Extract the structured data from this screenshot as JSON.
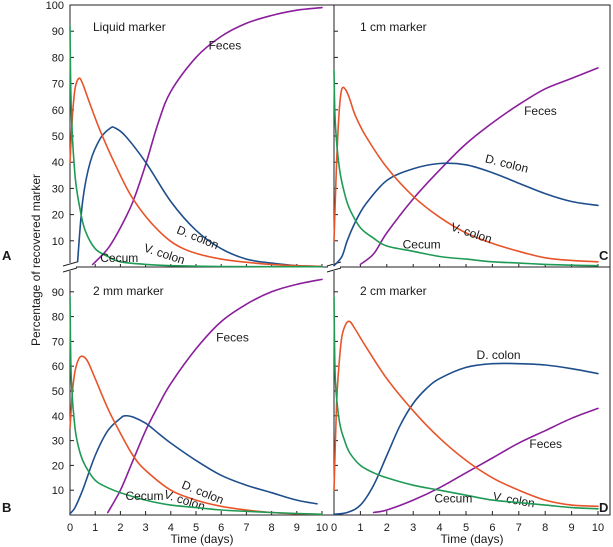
{
  "figure": {
    "ylabel": "Percentage of recovered marker",
    "xlabel": "Time (days)"
  },
  "colors": {
    "feces": "#8a1e9b",
    "d_colon": "#1f4e8c",
    "v_colon": "#e8542a",
    "cecum": "#1f9a55"
  },
  "chart_data": [
    {
      "type": "line",
      "panel": "A",
      "title": "Liquid marker",
      "xlim": [
        0,
        10
      ],
      "ylim": [
        0,
        100
      ],
      "yticks": [
        10,
        20,
        30,
        40,
        50,
        60,
        70,
        80,
        90,
        100
      ],
      "series": [
        {
          "name": "Feces",
          "x": [
            0.9,
            1.5,
            2,
            2.5,
            3,
            3.5,
            4,
            5,
            6,
            7,
            8,
            9,
            10
          ],
          "y": [
            1,
            7,
            15,
            25,
            39,
            55,
            67,
            80,
            88,
            93,
            96,
            98,
            99
          ],
          "label_at": [
            5.5,
            83
          ]
        },
        {
          "name": "D. colon",
          "x": [
            0.3,
            0.5,
            0.8,
            1.2,
            1.6,
            1.8,
            2.2,
            3,
            4,
            5,
            6,
            7,
            8,
            9,
            10
          ],
          "y": [
            2,
            25,
            40,
            49,
            53,
            53,
            50,
            40,
            25,
            14,
            7,
            3,
            1.5,
            0.5,
            0.2
          ],
          "label_at": [
            4.2,
            13
          ]
        },
        {
          "name": "V. colon",
          "x": [
            0,
            0.1,
            0.2,
            0.35,
            0.5,
            0.8,
            1.2,
            1.8,
            2.5,
            3.5,
            4.5,
            6,
            8,
            10
          ],
          "y": [
            40,
            58,
            68,
            72,
            70,
            62,
            52,
            39,
            26,
            14,
            7,
            3,
            1,
            0.2
          ],
          "label_at": [
            2.9,
            6
          ]
        },
        {
          "name": "Cecum",
          "x": [
            0,
            0.05,
            0.2,
            0.4,
            0.6,
            1,
            1.5,
            2,
            3,
            4,
            6,
            10
          ],
          "y": [
            92,
            60,
            35,
            22,
            14,
            7,
            4,
            2,
            1,
            0.5,
            0.2,
            0.1
          ],
          "label_at": [
            1.2,
            2
          ]
        }
      ]
    },
    {
      "type": "line",
      "panel": "C",
      "title": "1 cm marker",
      "xlim": [
        0,
        10
      ],
      "ylim": [
        0,
        100
      ],
      "yticks": [
        10,
        20,
        30,
        40,
        50,
        60,
        70,
        80,
        90,
        100
      ],
      "series": [
        {
          "name": "Feces",
          "x": [
            1,
            1.5,
            2,
            3,
            4,
            5,
            6,
            7,
            8,
            9,
            10
          ],
          "y": [
            1,
            5,
            13,
            26,
            37,
            47,
            55,
            62,
            68,
            72,
            76
          ],
          "label_at": [
            7.2,
            58
          ]
        },
        {
          "name": "D. colon",
          "x": [
            0,
            0.3,
            0.5,
            0.8,
            1.2,
            2,
            3,
            4,
            5,
            6,
            7,
            8,
            9,
            10
          ],
          "y": [
            0.5,
            4,
            10,
            17,
            24,
            33,
            37.5,
            39.5,
            39,
            36,
            32,
            28,
            25,
            23.5
          ],
          "label_at": [
            5.7,
            40
          ]
        },
        {
          "name": "V. colon",
          "x": [
            0,
            0.1,
            0.2,
            0.3,
            0.45,
            0.6,
            0.8,
            1.2,
            2,
            3,
            4,
            5,
            6,
            7,
            8,
            9,
            10
          ],
          "y": [
            10,
            40,
            60,
            68,
            67.5,
            64,
            58,
            50,
            38,
            27,
            19,
            13,
            9,
            6,
            3.5,
            2.5,
            2
          ],
          "label_at": [
            4.4,
            14
          ]
        },
        {
          "name": "Cecum",
          "x": [
            0,
            0.05,
            0.2,
            0.4,
            0.6,
            1,
            1.5,
            2,
            3,
            4,
            5,
            6,
            7,
            8,
            9,
            10
          ],
          "y": [
            75,
            55,
            38,
            28,
            22,
            15,
            11,
            8,
            6,
            4,
            3,
            2,
            1.5,
            1,
            0.7,
            0.5
          ],
          "label_at": [
            2.6,
            7
          ]
        }
      ]
    },
    {
      "type": "line",
      "panel": "B",
      "title": "2 mm marker",
      "xlim": [
        0,
        10
      ],
      "ylim": [
        0,
        100
      ],
      "yticks": [
        10,
        20,
        30,
        40,
        50,
        60,
        70,
        80,
        90
      ],
      "series": [
        {
          "name": "Feces",
          "x": [
            1.5,
            2,
            2.5,
            3,
            3.5,
            4,
            5,
            6,
            7,
            8,
            9,
            10
          ],
          "y": [
            1,
            10,
            22,
            34,
            44,
            53,
            67,
            78,
            85,
            90,
            93,
            95
          ],
          "label_at": [
            5.8,
            70
          ]
        },
        {
          "name": "D. colon",
          "x": [
            0,
            0.2,
            0.5,
            1,
            1.5,
            2,
            2.2,
            2.5,
            3,
            3.5,
            4,
            5,
            6,
            7,
            8,
            9,
            9.8
          ],
          "y": [
            0.5,
            3,
            10,
            24,
            34,
            39,
            40,
            39.5,
            37,
            33,
            29,
            22,
            16,
            12,
            9,
            6,
            4.5
          ],
          "label_at": [
            4.4,
            11
          ]
        },
        {
          "name": "V. colon",
          "x": [
            0,
            0.1,
            0.2,
            0.35,
            0.5,
            0.7,
            1,
            1.5,
            2,
            2.5,
            3,
            4,
            5,
            6,
            7,
            8,
            9,
            10
          ],
          "y": [
            35,
            50,
            58,
            63,
            64,
            62,
            55,
            43,
            33,
            24,
            18,
            10,
            6,
            3.5,
            2,
            1,
            0.5,
            0.3
          ],
          "label_at": [
            3.7,
            7
          ]
        },
        {
          "name": "Cecum",
          "x": [
            0,
            0.05,
            0.2,
            0.4,
            0.6,
            1,
            1.5,
            2,
            3,
            4,
            5,
            6,
            7,
            8,
            9,
            10
          ],
          "y": [
            88,
            55,
            35,
            25,
            20,
            14,
            11,
            9,
            6,
            4,
            3,
            2,
            1.5,
            1,
            0.6,
            0.3
          ],
          "label_at": [
            2.2,
            6
          ]
        }
      ]
    },
    {
      "type": "line",
      "panel": "D",
      "title": "2 cm marker",
      "xlim": [
        0,
        10
      ],
      "ylim": [
        0,
        100
      ],
      "yticks": [
        10,
        20,
        30,
        40,
        50,
        60,
        70,
        80,
        90
      ],
      "series": [
        {
          "name": "Feces",
          "x": [
            1.5,
            2,
            3,
            4,
            5,
            6,
            7,
            8,
            9,
            10
          ],
          "y": [
            1,
            2,
            6,
            11,
            17,
            23,
            29,
            34,
            39,
            43
          ],
          "label_at": [
            7.4,
            27
          ]
        },
        {
          "name": "D. colon",
          "x": [
            0,
            0.5,
            1,
            1.5,
            2,
            2.5,
            3,
            3.5,
            4,
            5,
            6,
            7,
            8,
            9,
            10
          ],
          "y": [
            0.3,
            1,
            4,
            12,
            24,
            36,
            45,
            51,
            55,
            59.5,
            61,
            61,
            60.5,
            59,
            57
          ],
          "label_at": [
            5.4,
            63
          ]
        },
        {
          "name": "V. colon",
          "x": [
            0,
            0.1,
            0.2,
            0.3,
            0.45,
            0.6,
            0.8,
            1.2,
            2,
            3,
            4,
            5,
            6,
            7,
            8,
            9,
            10
          ],
          "y": [
            10,
            45,
            62,
            72,
            77,
            78,
            75,
            68,
            55,
            42,
            31,
            22,
            15,
            10,
            6,
            4,
            3.5
          ],
          "label_at": [
            6.0,
            6
          ]
        },
        {
          "name": "Cecum",
          "x": [
            0,
            0.05,
            0.2,
            0.4,
            0.6,
            1,
            1.5,
            2,
            3,
            4,
            5,
            6,
            7,
            8,
            9,
            10
          ],
          "y": [
            88,
            55,
            38,
            30,
            25,
            20,
            17,
            15,
            12,
            10,
            8,
            6,
            5,
            4,
            3,
            2.5
          ],
          "label_at": [
            3.8,
            5
          ]
        }
      ]
    }
  ]
}
